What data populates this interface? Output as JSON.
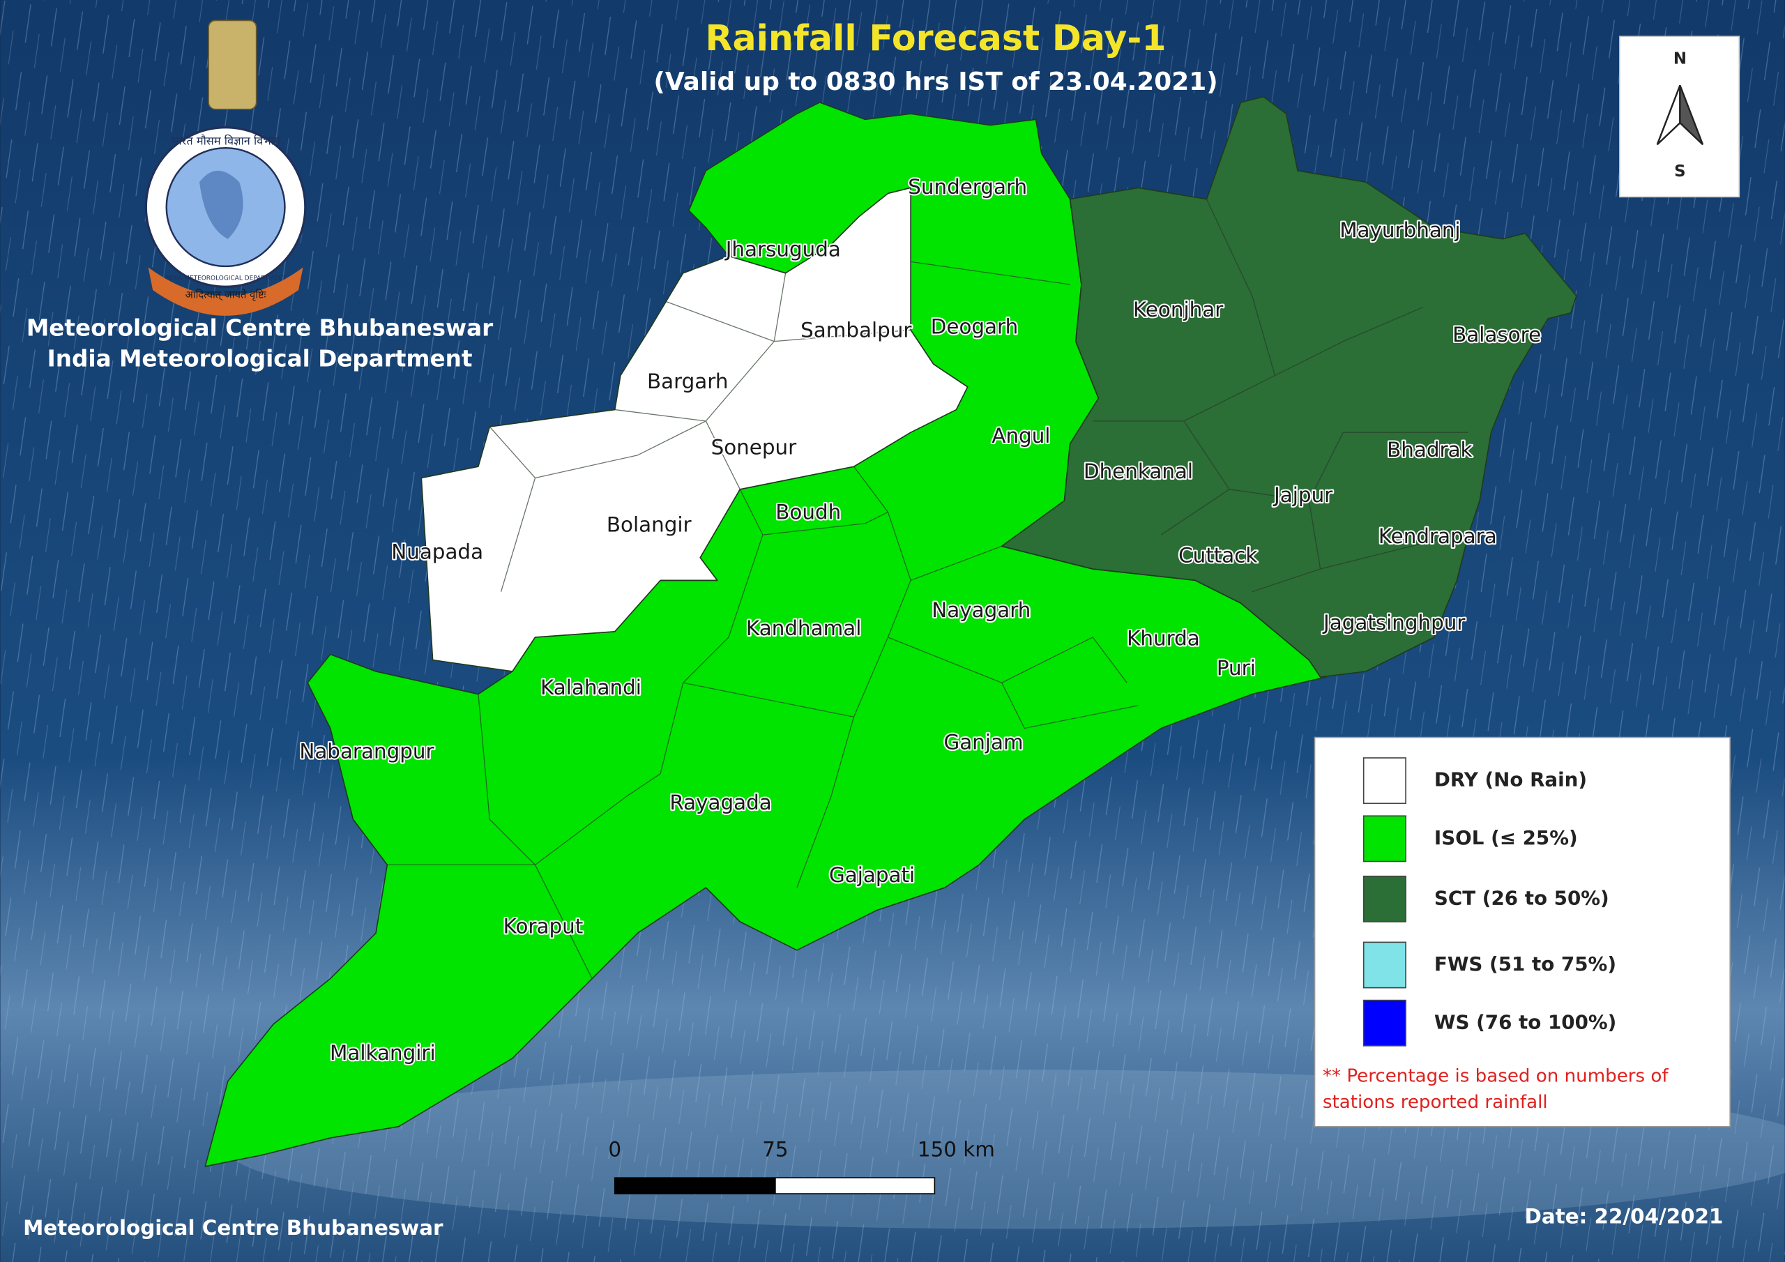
{
  "header": {
    "title": "Rainfall Forecast Day-1",
    "subtitle": "(Valid up to 0830 hrs IST of 23.04.2021)"
  },
  "logo": {
    "hindi": "भारत मौसम विज्ञान विभाग",
    "english": "INDIA METEOROLOGICAL DEPARTMENT",
    "motto": "आदित्यात् जायते वृष्टिः"
  },
  "organization": {
    "line1": "Meteorological Centre Bhubaneswar",
    "line2": "India Meteorological Department"
  },
  "compass": {
    "north": "N",
    "south": "S"
  },
  "districts": [
    "Sundergarh",
    "Jharsuguda",
    "Sambalpur",
    "Deogarh",
    "Bargarh",
    "Sonepur",
    "Angul",
    "Bolangir",
    "Nuapada",
    "Boudh",
    "Keonjhar",
    "Mayurbhanj",
    "Balasore",
    "Dhenkanal",
    "Jajpur",
    "Bhadrak",
    "Cuttack",
    "Kendrapara",
    "Jagatsinghpur",
    "Khurda",
    "Puri",
    "Nayagarh",
    "Kandhamal",
    "Kalahandi",
    "Ganjam",
    "Nabarangpur",
    "Rayagada",
    "Gajapati",
    "Koraput",
    "Malkangiri"
  ],
  "legend": {
    "items": [
      {
        "label": "DRY (No Rain)",
        "color": "#ffffff"
      },
      {
        "label": "ISOL (≤ 25%)",
        "color": "#00e400"
      },
      {
        "label": "SCT (26 to 50%)",
        "color": "#2b6e36"
      },
      {
        "label": "FWS (51 to 75%)",
        "color": "#7fe3e8"
      },
      {
        "label": "WS (76 to 100%)",
        "color": "#0000ff"
      }
    ],
    "note": [
      "** Percentage is based on numbers of",
      "stations reported rainfall"
    ]
  },
  "scale_bar": {
    "labels": [
      "0",
      "75",
      "150 km"
    ]
  },
  "footer": {
    "left": "Meteorological Centre Bhubaneswar",
    "date": "Date: 22/04/2021"
  }
}
